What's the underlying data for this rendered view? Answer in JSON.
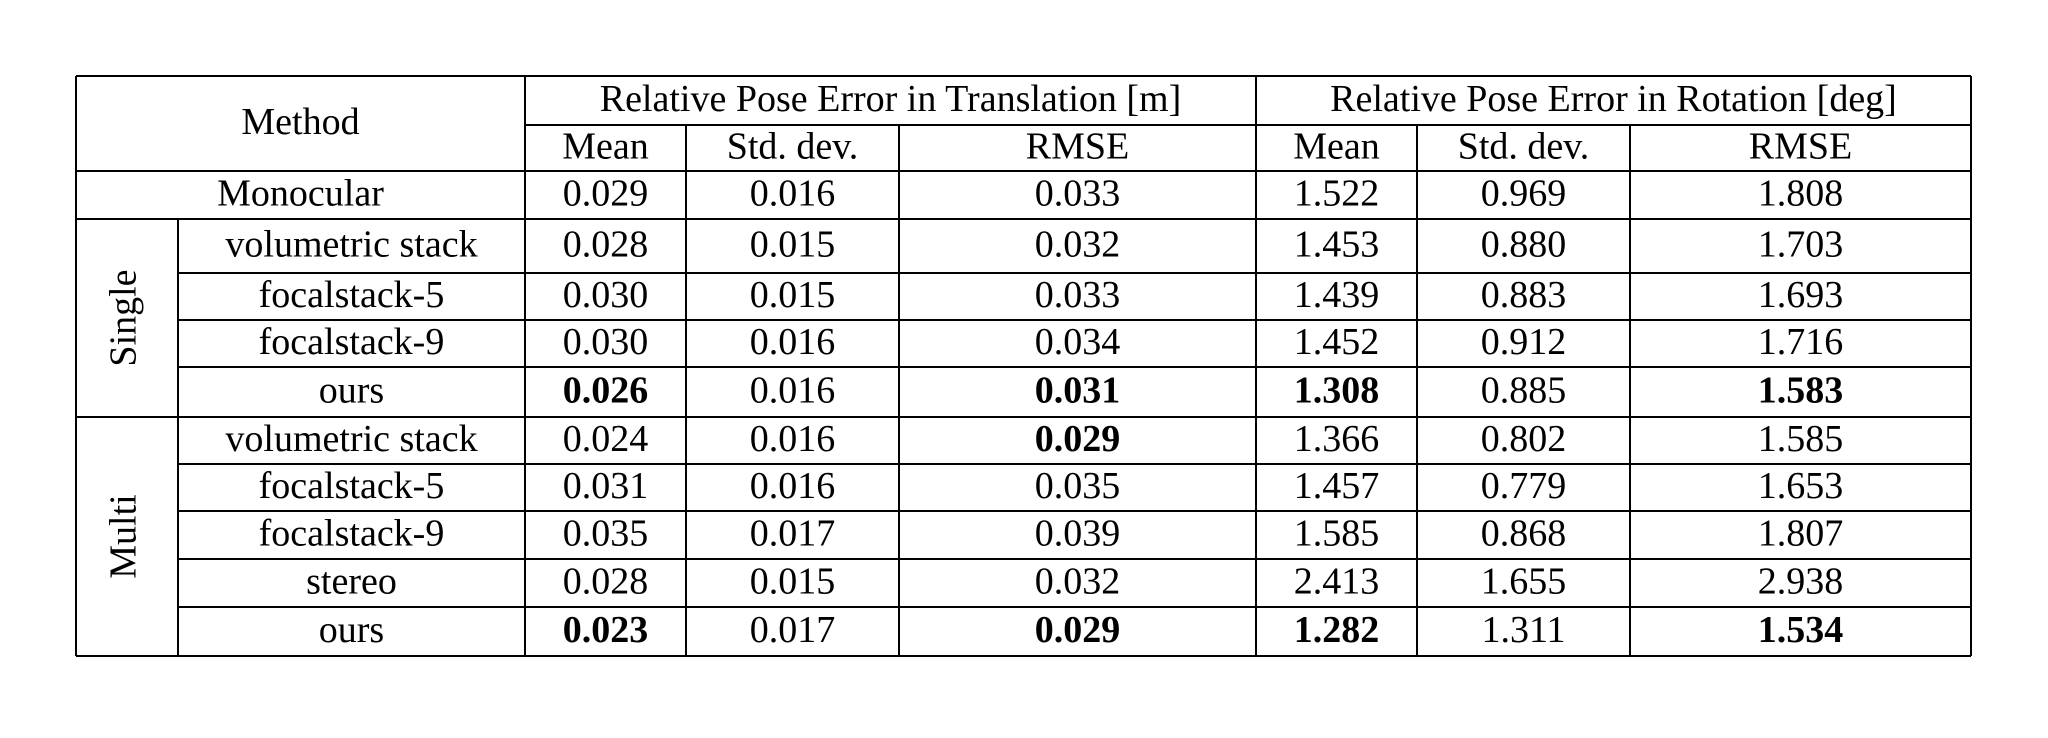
{
  "table": {
    "header": {
      "method": "Method",
      "groups": [
        "Relative Pose Error in Translation [m]",
        "Relative Pose Error in Rotation [deg]"
      ],
      "columns": [
        "Mean",
        "Std. dev.",
        "RMSE",
        "Mean",
        "Std. dev.",
        "RMSE"
      ]
    },
    "rows": [
      {
        "method": "Monocular",
        "values": [
          "0.029",
          "0.016",
          "0.033",
          "1.522",
          "0.969",
          "1.808"
        ]
      }
    ],
    "groups": [
      {
        "label": "Single",
        "rows": [
          {
            "method": "volumetric stack",
            "values": [
              "0.028",
              "0.015",
              "0.032",
              "1.453",
              "0.880",
              "1.703"
            ]
          },
          {
            "method": "focalstack-5",
            "values": [
              "0.030",
              "0.015",
              "0.033",
              "1.439",
              "0.883",
              "1.693"
            ]
          },
          {
            "method": "focalstack-9",
            "values": [
              "0.030",
              "0.016",
              "0.034",
              "1.452",
              "0.912",
              "1.716"
            ]
          },
          {
            "method": "ours",
            "values": [
              "0.026",
              "0.016",
              "0.031",
              "1.308",
              "0.885",
              "1.583"
            ],
            "bold": [
              0,
              2,
              3,
              5
            ]
          }
        ]
      },
      {
        "label": "Multi",
        "rows": [
          {
            "method": "volumetric stack",
            "values": [
              "0.024",
              "0.016",
              "0.029",
              "1.366",
              "0.802",
              "1.585"
            ],
            "bold": [
              2
            ]
          },
          {
            "method": "focalstack-5",
            "values": [
              "0.031",
              "0.016",
              "0.035",
              "1.457",
              "0.779",
              "1.653"
            ]
          },
          {
            "method": "focalstack-9",
            "values": [
              "0.035",
              "0.017",
              "0.039",
              "1.585",
              "0.868",
              "1.807"
            ]
          },
          {
            "method": "stereo",
            "values": [
              "0.028",
              "0.015",
              "0.032",
              "2.413",
              "1.655",
              "2.938"
            ]
          },
          {
            "method": "ours",
            "values": [
              "0.023",
              "0.017",
              "0.029",
              "1.282",
              "1.311",
              "1.534"
            ],
            "bold": [
              0,
              2,
              3,
              5
            ]
          }
        ]
      }
    ]
  }
}
